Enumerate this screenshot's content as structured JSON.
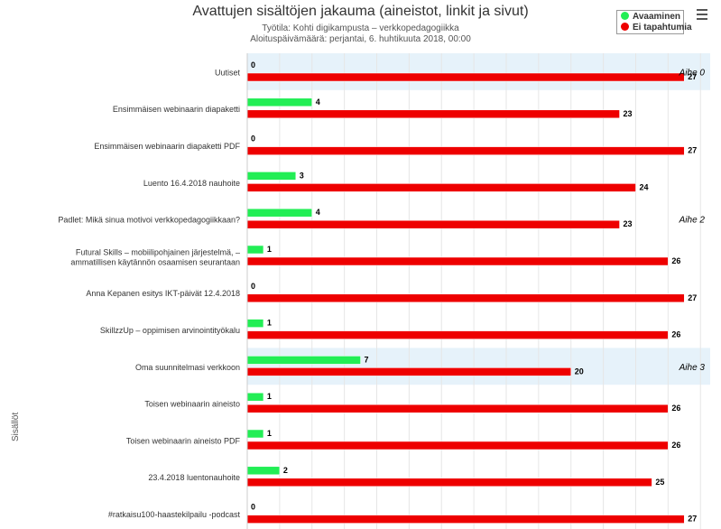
{
  "chart_data": {
    "type": "bar",
    "orientation": "horizontal",
    "title": "Avattujen sisältöjen jakauma (aineistot, linkit ja sivut)",
    "subtitle_lines": [
      "Työtila: Kohti digikampusta – verkkopedagogiikka",
      "Aloituspäivämäärä: perjantai, 6. huhtikuuta 2018, 00:00"
    ],
    "ylabel": "Sisällöt",
    "xlim": [
      0,
      27
    ],
    "grid": true,
    "legend_position": "top-right",
    "categories": [
      "Uutiset",
      "Ensimmäisen webinaarin diapaketti",
      "Ensimmäisen webinaarin diapaketti PDF",
      "Luento 16.4.2018 nauhoite",
      "Padlet: Mikä sinua motivoi verkkopedagogiikkaan?",
      "Futural Skills – mobiilipohjainen järjestelmä, – ammatillisen käytännön osaamisen seurantaan",
      "Anna Kepanen esitys IKT-päivät 12.4.2018",
      "SkillzzUp – oppimisen arvinointityökalu",
      "Oma suunnitelmasi verkkoon",
      "Toisen webinaarin aineisto",
      "Toisen webinaarin aineisto PDF",
      "23.4.2018 luentonauhoite",
      "#ratkaisu100-haastekilpailu -podcast"
    ],
    "series": [
      {
        "name": "Avaaminen",
        "color": "#22ee55",
        "values": [
          0,
          4,
          0,
          3,
          4,
          1,
          0,
          1,
          7,
          1,
          1,
          2,
          0
        ]
      },
      {
        "name": "Ei tapahtumia",
        "color": "#ee0000",
        "values": [
          27,
          23,
          27,
          24,
          23,
          26,
          27,
          26,
          20,
          26,
          26,
          25,
          27
        ]
      }
    ],
    "bands": [
      {
        "label": "Aihe 0",
        "from_index": 0,
        "to_index": 0,
        "shaded": true
      },
      {
        "label": "Aihe 2",
        "from_index": 1,
        "to_index": 7,
        "shaded": false
      },
      {
        "label": "Aihe 3",
        "from_index": 8,
        "to_index": 8,
        "shaded": true
      }
    ]
  },
  "colors": {
    "band_shade": "#e6f2fa",
    "grid": "#e6e6e6",
    "bar_edge": "#ffffff"
  },
  "menu_icon": "hamburger-icon"
}
